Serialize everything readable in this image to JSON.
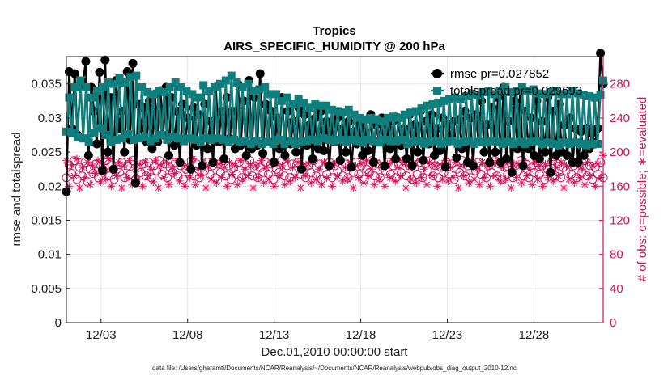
{
  "chart_data": {
    "type": "line",
    "title": "Tropics",
    "subtitle": "AIRS_SPECIFIC_HUMIDITY @ 200 hPa",
    "xlabel": "Dec.01,2010 00:00:00 start",
    "ylabel": "rmse and totalspread",
    "ylabel_right": "# of obs: o=possible; ∗=evaluated",
    "footnote": "data file: /Users/gharamti/Documents/NCAR/Reanalysis/~/Documents/NCAR/Reanalysis/webpub/obs_diag_output_2010-12.nc",
    "x_tick_labels": [
      "12/03",
      "12/08",
      "12/13",
      "12/18",
      "12/23",
      "12/28"
    ],
    "x_tick_days": [
      3,
      8,
      13,
      18,
      23,
      28
    ],
    "xlim_days": [
      1,
      32
    ],
    "ylim": [
      0,
      0.039
    ],
    "y_ticks": [
      0,
      0.005,
      0.01,
      0.015,
      0.02,
      0.025,
      0.03,
      0.035
    ],
    "y_tick_labels": [
      "0",
      "0.005",
      "0.01",
      "0.015",
      "0.02",
      "0.025",
      "0.03",
      "0.035"
    ],
    "ylim_right": [
      0,
      312
    ],
    "y_ticks_right": [
      0,
      40,
      80,
      120,
      160,
      200,
      240,
      280
    ],
    "grid": true,
    "legend_position": "top-right",
    "series": [
      {
        "name": "rmse",
        "legend_label": "rmse pr=0.027852",
        "color": "#000000",
        "marker": "circle",
        "axis": "left",
        "values": [
          0.0192,
          0.0368,
          0.0285,
          0.0365,
          0.0275,
          0.0348,
          0.0352,
          0.0383,
          0.0245,
          0.0345,
          0.031,
          0.0262,
          0.0367,
          0.0223,
          0.0385,
          0.025,
          0.033,
          0.0225,
          0.0355,
          0.0285,
          0.031,
          0.025,
          0.0368,
          0.0268,
          0.038,
          0.0205,
          0.032,
          0.0285,
          0.0315,
          0.0265,
          0.0325,
          0.0255,
          0.0335,
          0.0265,
          0.034,
          0.0275,
          0.0345,
          0.0245,
          0.033,
          0.026,
          0.031,
          0.0235,
          0.032,
          0.027,
          0.03,
          0.0225,
          0.0315,
          0.026,
          0.0305,
          0.023,
          0.032,
          0.0255,
          0.0295,
          0.0235,
          0.0345,
          0.0265,
          0.031,
          0.024,
          0.033,
          0.027,
          0.031,
          0.0255,
          0.035,
          0.026,
          0.0325,
          0.0245,
          0.0355,
          0.0255,
          0.033,
          0.026,
          0.0365,
          0.0248,
          0.032,
          0.0265,
          0.031,
          0.0235,
          0.03,
          0.0255,
          0.033,
          0.0245,
          0.031,
          0.0262,
          0.0295,
          0.025,
          0.0315,
          0.0225,
          0.0305,
          0.026,
          0.029,
          0.024,
          0.03,
          0.0255,
          0.031,
          0.0252,
          0.0295,
          0.023,
          0.029,
          0.0265,
          0.03,
          0.0238,
          0.0285,
          0.025,
          0.0295,
          0.0228,
          0.028,
          0.0262,
          0.029,
          0.0245,
          0.028,
          0.0252,
          0.0305,
          0.0235,
          0.029,
          0.0265,
          0.03,
          0.023,
          0.0285,
          0.0255,
          0.0295,
          0.024,
          0.03,
          0.026,
          0.0285,
          0.024,
          0.0305,
          0.023,
          0.029,
          0.025,
          0.031,
          0.0238,
          0.0295,
          0.0262,
          0.0305,
          0.0245,
          0.0285,
          0.0252,
          0.03,
          0.0228,
          0.029,
          0.027,
          0.0295,
          0.0242,
          0.0298,
          0.0255,
          0.031,
          0.0235,
          0.03,
          0.023,
          0.0305,
          0.0265,
          0.0325,
          0.025,
          0.029,
          0.0235,
          0.0315,
          0.025,
          0.033,
          0.0235,
          0.0345,
          0.024,
          0.0295,
          0.022,
          0.0325,
          0.0255,
          0.034,
          0.023,
          0.031,
          0.0255,
          0.03,
          0.0245,
          0.0325,
          0.024,
          0.0295,
          0.025,
          0.033,
          0.022,
          0.031,
          0.0245,
          0.032,
          0.025,
          0.029,
          0.0245,
          0.03,
          0.0235,
          0.0285,
          0.0235,
          0.028,
          0.0245,
          0.0285,
          0.0255,
          0.0278,
          0.0262,
          0.0285,
          0.0395,
          0.035
        ]
      },
      {
        "name": "totalspread",
        "legend_label": "totalspread pr=0.029693",
        "color": "#0f7f7d",
        "marker": "square",
        "axis": "left",
        "values": [
          0.028,
          0.033,
          0.0278,
          0.0345,
          0.0272,
          0.0355,
          0.027,
          0.0345,
          0.0265,
          0.033,
          0.0278,
          0.034,
          0.0285,
          0.0345,
          0.0275,
          0.0352,
          0.0265,
          0.035,
          0.0268,
          0.0358,
          0.027,
          0.0352,
          0.0276,
          0.036,
          0.0268,
          0.0362,
          0.027,
          0.0345,
          0.0272,
          0.0338,
          0.0266,
          0.0335,
          0.027,
          0.034,
          0.0275,
          0.0338,
          0.0268,
          0.0345,
          0.0272,
          0.0352,
          0.027,
          0.0345,
          0.0266,
          0.034,
          0.027,
          0.0335,
          0.0268,
          0.033,
          0.0265,
          0.0348,
          0.027,
          0.034,
          0.0268,
          0.0345,
          0.027,
          0.035,
          0.0268,
          0.0355,
          0.0265,
          0.0362,
          0.0268,
          0.0352,
          0.0265,
          0.0345,
          0.0266,
          0.035,
          0.0262,
          0.034,
          0.0266,
          0.0342,
          0.0262,
          0.0345,
          0.0265,
          0.0335,
          0.0262,
          0.0335,
          0.0268,
          0.0325,
          0.0262,
          0.033,
          0.0266,
          0.032,
          0.0262,
          0.0328,
          0.0265,
          0.0322,
          0.0266,
          0.0315,
          0.0268,
          0.032,
          0.0266,
          0.0318,
          0.027,
          0.0318,
          0.0268,
          0.0312,
          0.0266,
          0.031,
          0.0268,
          0.0308,
          0.0265,
          0.0312,
          0.0268,
          0.0305,
          0.0266,
          0.03,
          0.0264,
          0.0298,
          0.0268,
          0.03,
          0.0266,
          0.0298,
          0.0264,
          0.0295,
          0.0268,
          0.03,
          0.0266,
          0.0302,
          0.0266,
          0.03,
          0.0268,
          0.0305,
          0.0262,
          0.0308,
          0.0265,
          0.031,
          0.0266,
          0.0314,
          0.0262,
          0.0318,
          0.0265,
          0.032,
          0.0266,
          0.0322,
          0.0262,
          0.0325,
          0.0265,
          0.0328,
          0.0266,
          0.033,
          0.0262,
          0.0328,
          0.0265,
          0.0332,
          0.0266,
          0.0336,
          0.0262,
          0.0333,
          0.0265,
          0.0338,
          0.0264,
          0.034,
          0.0266,
          0.0335,
          0.0265,
          0.034,
          0.0262,
          0.0345,
          0.0265,
          0.0338,
          0.0262,
          0.034,
          0.0265,
          0.0345,
          0.0262,
          0.034,
          0.0265,
          0.0342,
          0.0266,
          0.0336,
          0.0262,
          0.0335,
          0.0264,
          0.0338,
          0.0262,
          0.034,
          0.026,
          0.0335,
          0.0264,
          0.0335,
          0.0262,
          0.034,
          0.0264,
          0.0336,
          0.0262,
          0.0334,
          0.026,
          0.0332,
          0.0262,
          0.033,
          0.0262,
          0.0334,
          0.0355
        ]
      },
      {
        "name": "possible obs",
        "color": "#d0135a",
        "marker": "open-circle",
        "axis": "right",
        "values": [
          170,
          185,
          175,
          190,
          168,
          182,
          172,
          188,
          165,
          180,
          175,
          186,
          170,
          184,
          178,
          190,
          172,
          186,
          168,
          180,
          176,
          188,
          170,
          184,
          174,
          190,
          168,
          182,
          176,
          186,
          172,
          188,
          170,
          184,
          178,
          190,
          174,
          186,
          170,
          182,
          176,
          188,
          172,
          184,
          168,
          180,
          176,
          190,
          172,
          186,
          170,
          182,
          178,
          188,
          174,
          184,
          170,
          186,
          176,
          190,
          172,
          184,
          168,
          182,
          174,
          188,
          170,
          186,
          178,
          190,
          172,
          184,
          170,
          182,
          176,
          188,
          174,
          186,
          168,
          180,
          176,
          190,
          172,
          184,
          170,
          186,
          178,
          188,
          174,
          182,
          170,
          184,
          176,
          190,
          172,
          186,
          168,
          182,
          174,
          188,
          170,
          184,
          178,
          190,
          172,
          186,
          170,
          182,
          176,
          188,
          174,
          184,
          168,
          180,
          176,
          190,
          172,
          186,
          170,
          182,
          178,
          188,
          174,
          184,
          170,
          186,
          176,
          190,
          172,
          184,
          168,
          182,
          174,
          188,
          170,
          186,
          178,
          190,
          172,
          184,
          170,
          182,
          176,
          188,
          174,
          186,
          168,
          180,
          176,
          190,
          172,
          184,
          170,
          186,
          178,
          188,
          174,
          182,
          170,
          184,
          176,
          190,
          172,
          186,
          168,
          182,
          174,
          188,
          170,
          184,
          178,
          190,
          172,
          186,
          170,
          182,
          176,
          188,
          174,
          184,
          168,
          180,
          176,
          190,
          172,
          186,
          170,
          182,
          178,
          188,
          174,
          184,
          170,
          186,
          176,
          190,
          172,
          184,
          168,
          182,
          174,
          188,
          170
        ]
      },
      {
        "name": "evaluated obs",
        "color": "#d0135a",
        "marker": "asterisk",
        "axis": "right",
        "values": [
          190,
          160,
          185,
          172,
          192,
          158,
          182,
          170,
          188,
          162,
          184,
          175,
          190,
          165,
          186,
          168,
          192,
          160,
          180,
          172,
          188,
          158,
          184,
          170,
          190,
          162,
          182,
          168,
          186,
          160,
          188,
          172,
          180,
          165,
          190,
          158,
          184,
          170,
          188,
          162,
          182,
          175,
          190,
          166,
          186,
          160,
          184,
          170,
          192,
          162,
          180,
          172,
          188,
          158,
          184,
          168,
          190,
          164,
          186,
          170,
          182,
          160,
          188,
          174,
          184,
          162,
          190,
          168,
          180,
          172,
          186,
          158,
          184,
          170,
          190,
          164,
          182,
          168,
          188,
          160,
          186,
          172,
          184,
          162,
          190,
          166,
          182,
          170,
          188,
          158,
          184,
          172,
          186,
          164,
          190,
          168,
          180,
          162,
          188,
          170,
          184,
          160,
          186,
          172,
          190,
          166,
          182,
          168,
          188,
          158,
          184,
          170,
          186,
          164,
          190,
          172,
          180,
          162,
          188,
          168,
          184,
          160,
          186,
          170,
          190,
          166,
          182,
          172,
          188,
          158,
          184,
          168,
          186,
          164,
          190,
          170,
          180,
          162,
          188,
          172,
          184,
          160,
          186,
          168,
          190,
          166,
          182,
          170,
          188,
          158,
          184,
          172,
          186,
          164,
          190,
          168,
          180,
          162,
          188,
          170,
          184,
          160,
          186,
          172,
          190,
          166,
          182,
          168,
          188,
          158,
          184,
          170,
          186,
          164,
          190,
          172,
          180,
          162,
          188,
          168,
          184,
          160,
          186,
          170,
          190,
          166,
          182,
          172,
          188,
          158,
          184,
          168,
          186,
          164,
          190,
          170,
          180,
          162,
          188,
          172,
          184,
          160,
          186,
          170,
          196
        ]
      }
    ]
  }
}
